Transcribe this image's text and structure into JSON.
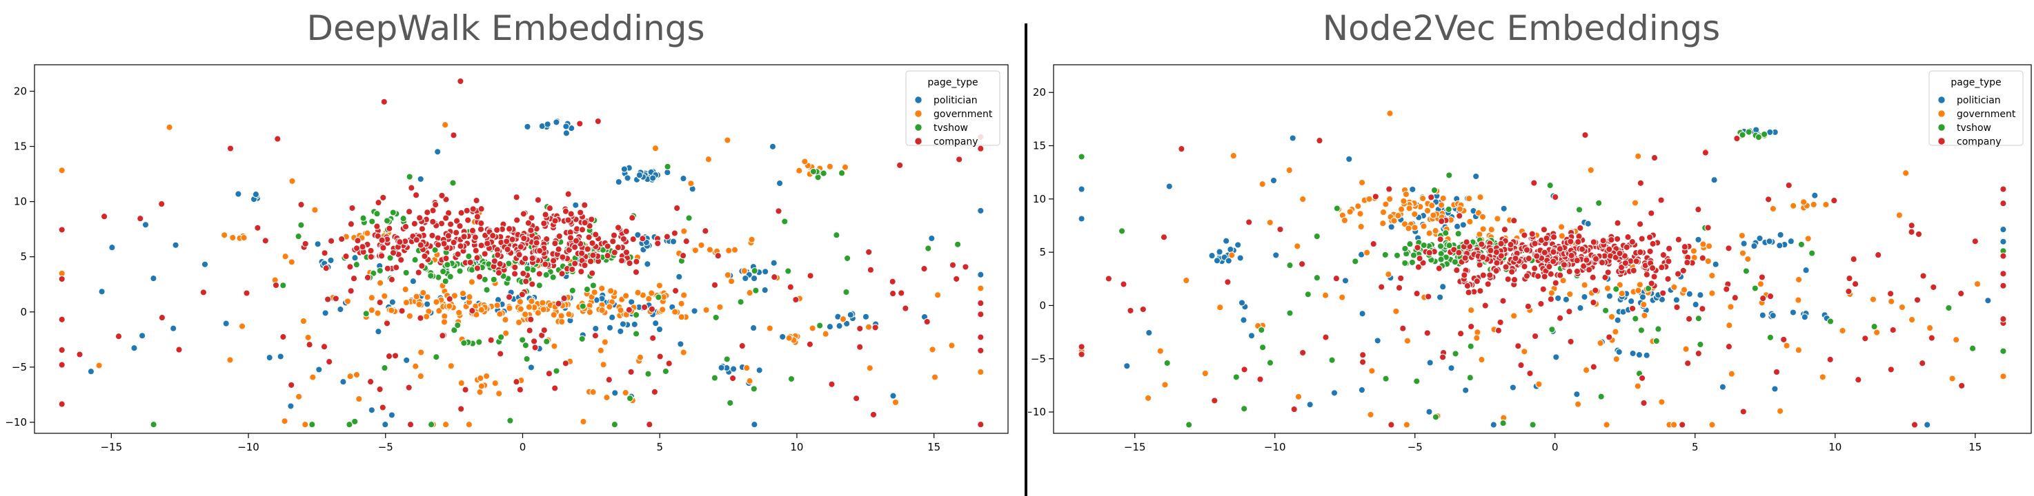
{
  "colors": {
    "politician": "#1f77b4",
    "government": "#ff7f0e",
    "tvshow": "#2ca02c",
    "company": "#d62728"
  },
  "chart_data": [
    {
      "type": "scatter",
      "title": "DeepWalk Embeddings",
      "xlabel": "",
      "ylabel": "",
      "xlim": [
        -17.8,
        17.7
      ],
      "ylim": [
        -11.0,
        22.4
      ],
      "x_ticks": [
        "−15",
        "−10",
        "−5",
        "0",
        "5",
        "10",
        "15"
      ],
      "x_tick_values": [
        -15,
        -10,
        -5,
        0,
        5,
        10,
        15
      ],
      "y_ticks": [
        "−10",
        "−5",
        "0",
        "5",
        "10",
        "15",
        "20"
      ],
      "y_tick_values": [
        -10,
        -5,
        0,
        5,
        10,
        15,
        20
      ],
      "grid": false,
      "legend": {
        "title": "page_type",
        "placement": "top-right",
        "entries": [
          "politician",
          "government",
          "tvshow",
          "company"
        ]
      },
      "series": [
        {
          "name": "politician",
          "clusters": [
            {
              "x": 0.3,
              "y": 0.6,
              "sx": 2.6,
              "sy": 0.6,
              "n": 40
            },
            {
              "x": 4.4,
              "y": 12.3,
              "sx": 0.5,
              "sy": 0.4,
              "n": 25
            },
            {
              "x": 1.2,
              "y": 17.0,
              "sx": 0.4,
              "sy": 0.3,
              "n": 10
            },
            {
              "x": 4.8,
              "y": 6.5,
              "sx": 0.5,
              "sy": 0.4,
              "n": 12
            },
            {
              "x": 8.2,
              "y": 3.5,
              "sx": 0.5,
              "sy": 0.2,
              "n": 8
            },
            {
              "x": 12.0,
              "y": -0.5,
              "sx": 0.4,
              "sy": 0.3,
              "n": 8
            },
            {
              "x": -9.8,
              "y": 10.5,
              "sx": 0.3,
              "sy": 0.2,
              "n": 5
            },
            {
              "x": -7.0,
              "y": 4.5,
              "sx": 0.4,
              "sy": 0.2,
              "n": 6
            },
            {
              "x": 3.5,
              "y": -1.5,
              "sx": 0.6,
              "sy": 0.3,
              "n": 8
            },
            {
              "x": 7.8,
              "y": -5.2,
              "sx": 0.4,
              "sy": 0.2,
              "n": 6
            },
            {
              "x": 0.0,
              "y": 0.0,
              "sx": 8.0,
              "sy": 6.0,
              "n": 70
            }
          ]
        },
        {
          "name": "government",
          "clusters": [
            {
              "x": 0.0,
              "y": 0.2,
              "sx": 2.6,
              "sy": 0.4,
              "n": 110
            },
            {
              "x": -3.8,
              "y": 1.0,
              "sx": 0.9,
              "sy": 0.9,
              "n": 25
            },
            {
              "x": 4.0,
              "y": 1.5,
              "sx": 1.0,
              "sy": 0.3,
              "n": 20
            },
            {
              "x": 10.8,
              "y": 13.2,
              "sx": 0.5,
              "sy": 0.3,
              "n": 10
            },
            {
              "x": -5.8,
              "y": 7.0,
              "sx": 0.5,
              "sy": 0.3,
              "n": 10
            },
            {
              "x": -10.5,
              "y": 6.8,
              "sx": 0.4,
              "sy": 0.2,
              "n": 6
            },
            {
              "x": 6.5,
              "y": 5.5,
              "sx": 0.6,
              "sy": 0.2,
              "n": 8
            },
            {
              "x": -1.5,
              "y": -6.5,
              "sx": 0.4,
              "sy": 0.4,
              "n": 8
            },
            {
              "x": 10.0,
              "y": -2.5,
              "sx": 0.4,
              "sy": 0.2,
              "n": 6
            },
            {
              "x": 0.0,
              "y": 0.0,
              "sx": 8.5,
              "sy": 6.5,
              "n": 110
            }
          ]
        },
        {
          "name": "tvshow",
          "clusters": [
            {
              "x": -1.2,
              "y": 4.0,
              "sx": 2.0,
              "sy": 0.8,
              "n": 85
            },
            {
              "x": 2.0,
              "y": 5.5,
              "sx": 1.2,
              "sy": 1.0,
              "n": 35
            },
            {
              "x": -5.0,
              "y": 8.5,
              "sx": 0.5,
              "sy": 0.4,
              "n": 12
            },
            {
              "x": 10.8,
              "y": 12.6,
              "sx": 0.4,
              "sy": 0.2,
              "n": 6
            },
            {
              "x": 0.0,
              "y": -2.5,
              "sx": 1.5,
              "sy": 0.3,
              "n": 10
            },
            {
              "x": 0.0,
              "y": 0.0,
              "sx": 8.0,
              "sy": 6.5,
              "n": 60
            }
          ]
        },
        {
          "name": "company",
          "clusters": [
            {
              "x": -0.8,
              "y": 6.5,
              "sx": 2.3,
              "sy": 1.7,
              "n": 260
            },
            {
              "x": 1.5,
              "y": 5.8,
              "sx": 1.8,
              "sy": 1.0,
              "n": 80
            },
            {
              "x": -4.5,
              "y": 6.0,
              "sx": 1.2,
              "sy": 0.8,
              "n": 40
            },
            {
              "x": 0.0,
              "y": 1.0,
              "sx": 9.0,
              "sy": 6.5,
              "n": 140
            }
          ]
        }
      ]
    },
    {
      "type": "scatter",
      "title": "Node2Vec Embeddings",
      "xlabel": "",
      "ylabel": "",
      "xlim": [
        -17.9,
        17.0
      ],
      "ylim": [
        -12.0,
        22.6
      ],
      "x_ticks": [
        "−15",
        "−10",
        "−5",
        "0",
        "5",
        "10",
        "15"
      ],
      "x_tick_values": [
        -15,
        -10,
        -5,
        0,
        5,
        10,
        15
      ],
      "y_ticks": [
        "−10",
        "−5",
        "0",
        "5",
        "10",
        "15",
        "20"
      ],
      "y_tick_values": [
        -10,
        -5,
        0,
        5,
        10,
        15,
        20
      ],
      "grid": false,
      "legend": {
        "title": "page_type",
        "placement": "top-right",
        "entries": [
          "politician",
          "government",
          "tvshow",
          "company"
        ]
      },
      "series": [
        {
          "name": "politician",
          "clusters": [
            {
              "x": -3.8,
              "y": 8.5,
              "sx": 0.9,
              "sy": 1.0,
              "n": 35
            },
            {
              "x": 3.2,
              "y": 0.5,
              "sx": 1.0,
              "sy": 0.6,
              "n": 30
            },
            {
              "x": -11.7,
              "y": 4.8,
              "sx": 0.3,
              "sy": 0.5,
              "n": 15
            },
            {
              "x": 7.5,
              "y": 6.0,
              "sx": 0.4,
              "sy": 0.3,
              "n": 10
            },
            {
              "x": 8.5,
              "y": -1.0,
              "sx": 0.6,
              "sy": 0.2,
              "n": 10
            },
            {
              "x": 7.3,
              "y": 16.3,
              "sx": 0.4,
              "sy": 0.2,
              "n": 8
            },
            {
              "x": 2.5,
              "y": -4.5,
              "sx": 0.4,
              "sy": 0.2,
              "n": 6
            },
            {
              "x": 0.0,
              "y": 0.0,
              "sx": 8.0,
              "sy": 6.5,
              "n": 60
            }
          ]
        },
        {
          "name": "government",
          "clusters": [
            {
              "x": -5.2,
              "y": 9.0,
              "sx": 1.6,
              "sy": 0.9,
              "n": 70
            },
            {
              "x": -2.0,
              "y": 6.5,
              "sx": 1.8,
              "sy": 0.8,
              "n": 25
            },
            {
              "x": 1.5,
              "y": 1.5,
              "sx": 1.5,
              "sy": 0.6,
              "n": 15
            },
            {
              "x": 5.5,
              "y": 5.0,
              "sx": 0.8,
              "sy": 0.5,
              "n": 10
            },
            {
              "x": 9.0,
              "y": 9.5,
              "sx": 0.5,
              "sy": 0.3,
              "n": 6
            },
            {
              "x": 0.0,
              "y": 0.0,
              "sx": 8.5,
              "sy": 6.5,
              "n": 110
            }
          ]
        },
        {
          "name": "tvshow",
          "clusters": [
            {
              "x": -4.0,
              "y": 5.3,
              "sx": 0.8,
              "sy": 0.6,
              "n": 60
            },
            {
              "x": -2.5,
              "y": 4.5,
              "sx": 1.2,
              "sy": 0.7,
              "n": 35
            },
            {
              "x": 7.0,
              "y": 16.0,
              "sx": 0.5,
              "sy": 0.2,
              "n": 10
            },
            {
              "x": 0.0,
              "y": 0.0,
              "sx": 8.0,
              "sy": 6.5,
              "n": 60
            }
          ]
        },
        {
          "name": "company",
          "clusters": [
            {
              "x": -0.3,
              "y": 4.8,
              "sx": 1.9,
              "sy": 1.0,
              "n": 260
            },
            {
              "x": 2.0,
              "y": 4.3,
              "sx": 1.5,
              "sy": 0.9,
              "n": 90
            },
            {
              "x": -3.0,
              "y": 2.5,
              "sx": 1.0,
              "sy": 0.6,
              "n": 25
            },
            {
              "x": 0.0,
              "y": 1.0,
              "sx": 9.0,
              "sy": 6.5,
              "n": 140
            }
          ]
        }
      ]
    }
  ]
}
